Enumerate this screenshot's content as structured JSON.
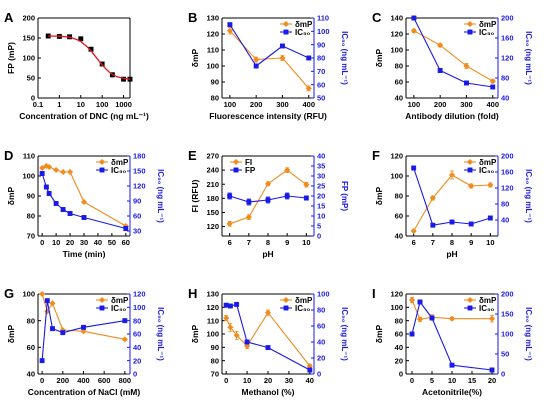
{
  "colors": {
    "orange": "#f08c1e",
    "blue": "#1a1ae6",
    "red": "#e0141e",
    "black": "#000000"
  },
  "chart_data": [
    {
      "panel": "A",
      "type": "scatter",
      "xlabel": "Concentration of DNC (ng mL⁻¹)",
      "ylabel_left": "FP (mP)",
      "x_scale": "log",
      "xlim": [
        0.1,
        2000
      ],
      "ylim_left": [
        0,
        200
      ],
      "xticks": [
        0.1,
        1,
        10,
        100,
        1000
      ],
      "xtick_labels": [
        "0.1",
        "1",
        "10",
        "100",
        "1000"
      ],
      "yticks_left": [
        0,
        50,
        100,
        150,
        200
      ],
      "series": [
        {
          "axis": "left",
          "color_key": "black",
          "marker": "square",
          "line": false,
          "errorbars": true,
          "points": [
            [
              0.3,
              155,
              4
            ],
            [
              1,
              154,
              3
            ],
            [
              3,
              153,
              4
            ],
            [
              10,
              148,
              4
            ],
            [
              30,
              122,
              4
            ],
            [
              100,
              85,
              4
            ],
            [
              300,
              58,
              5
            ],
            [
              1000,
              47,
              4
            ],
            [
              2000,
              47,
              3
            ]
          ]
        },
        {
          "axis": "left",
          "color_key": "red",
          "marker": "none",
          "line": true,
          "smooth": true,
          "points": [
            [
              0.3,
              155
            ],
            [
              1,
              154.5
            ],
            [
              3,
              152
            ],
            [
              6,
              147
            ],
            [
              10,
              141
            ],
            [
              20,
              128
            ],
            [
              30,
              118
            ],
            [
              50,
              103
            ],
            [
              80,
              89
            ],
            [
              130,
              76
            ],
            [
              200,
              66
            ],
            [
              300,
              59
            ],
            [
              500,
              53
            ],
            [
              1000,
              49
            ],
            [
              2000,
              47
            ]
          ]
        }
      ]
    },
    {
      "panel": "B",
      "type": "line",
      "xlabel": "Fluorescence intensity (RFU)",
      "ylabel_left": "δmP",
      "ylabel_right": "IC₅₀ (ng mL⁻¹)",
      "xlim": [
        70,
        420
      ],
      "ylim_left": [
        80,
        130
      ],
      "ylim_right": [
        50,
        110
      ],
      "xticks": [
        100,
        200,
        300,
        400
      ],
      "yticks_left": [
        80,
        90,
        100,
        110,
        120,
        130
      ],
      "yticks_right": [
        50,
        60,
        70,
        80,
        90,
        100,
        110
      ],
      "legend": [
        {
          "label": "δmP",
          "color_key": "orange",
          "marker": "diamond"
        },
        {
          "label": "IC₅₀",
          "color_key": "blue",
          "marker": "square"
        }
      ],
      "legend_position": "top-right",
      "series": [
        {
          "axis": "left",
          "color_key": "orange",
          "marker": "diamond",
          "line": true,
          "errorbars": true,
          "points": [
            [
              100,
              122,
              2
            ],
            [
              200,
              104,
              1.5
            ],
            [
              300,
              105,
              1.5
            ],
            [
              400,
              86,
              1.5
            ]
          ]
        },
        {
          "axis": "right",
          "color_key": "blue",
          "marker": "square",
          "line": true,
          "points": [
            [
              100,
              105
            ],
            [
              200,
              74
            ],
            [
              300,
              89
            ],
            [
              400,
              80
            ]
          ]
        }
      ]
    },
    {
      "panel": "C",
      "type": "line",
      "xlabel": "Antibody dilution (fold)",
      "ylabel_left": "δmP",
      "ylabel_right": "IC₅₀ (ng mL⁻¹)",
      "xlim": [
        70,
        420
      ],
      "ylim_left": [
        40,
        140
      ],
      "ylim_right": [
        40,
        200
      ],
      "xticks": [
        100,
        200,
        300,
        400
      ],
      "yticks_left": [
        40,
        60,
        80,
        100,
        120,
        140
      ],
      "yticks_right": [
        40,
        80,
        120,
        160,
        200
      ],
      "legend": [
        {
          "label": "δmP",
          "color_key": "orange",
          "marker": "diamond"
        },
        {
          "label": "IC₅₀",
          "color_key": "blue",
          "marker": "square"
        }
      ],
      "legend_position": "top-right",
      "series": [
        {
          "axis": "left",
          "color_key": "orange",
          "marker": "diamond",
          "line": true,
          "errorbars": true,
          "points": [
            [
              100,
              124,
              2
            ],
            [
              200,
              106,
              2
            ],
            [
              300,
              80,
              3
            ],
            [
              400,
              61,
              2
            ]
          ]
        },
        {
          "axis": "right",
          "color_key": "blue",
          "marker": "square",
          "line": true,
          "points": [
            [
              100,
              200
            ],
            [
              200,
              95
            ],
            [
              300,
              70
            ],
            [
              400,
              62
            ]
          ]
        }
      ]
    },
    {
      "panel": "D",
      "type": "line",
      "xlabel": "Time (min)",
      "ylabel_left": "δmP",
      "ylabel_right": "IC₅₀ (ng mL⁻¹)",
      "xlim": [
        -3,
        63
      ],
      "ylim_left": [
        70,
        110
      ],
      "ylim_right": [
        20,
        180
      ],
      "xticks": [
        0,
        10,
        20,
        30,
        40,
        50,
        60
      ],
      "yticks_left": [
        70,
        80,
        90,
        100,
        110
      ],
      "yticks_right": [
        30,
        60,
        90,
        120,
        150,
        180
      ],
      "legend": [
        {
          "label": "δmP",
          "color_key": "orange",
          "marker": "diamond"
        },
        {
          "label": "IC₅₀",
          "color_key": "blue",
          "marker": "square"
        }
      ],
      "legend_position": "top-right",
      "series": [
        {
          "axis": "left",
          "color_key": "orange",
          "marker": "diamond",
          "line": true,
          "points": [
            [
              0,
              104
            ],
            [
              3,
              105
            ],
            [
              5,
              104.5
            ],
            [
              10,
              103
            ],
            [
              15,
              102
            ],
            [
              20,
              102
            ],
            [
              30,
              87
            ],
            [
              60,
              75
            ]
          ]
        },
        {
          "axis": "right",
          "color_key": "blue",
          "marker": "square",
          "line": true,
          "points": [
            [
              0,
              145
            ],
            [
              3,
              118
            ],
            [
              5,
              105
            ],
            [
              10,
              85
            ],
            [
              15,
              73
            ],
            [
              20,
              65
            ],
            [
              30,
              57
            ],
            [
              60,
              35
            ]
          ]
        }
      ]
    },
    {
      "panel": "E",
      "type": "line",
      "xlabel": "pH",
      "ylabel_left": "FI (RFU)",
      "ylabel_right": "FP (mP)",
      "xlim": [
        5.6,
        10.4
      ],
      "ylim_left": [
        100,
        270
      ],
      "ylim_right": [
        0,
        40
      ],
      "xticks": [
        6,
        7,
        8,
        9,
        10
      ],
      "yticks_left": [
        120,
        150,
        180,
        210,
        240,
        270
      ],
      "yticks_right": [
        0,
        5,
        10,
        15,
        20,
        25,
        30,
        35,
        40
      ],
      "legend": [
        {
          "label": "FI",
          "color_key": "orange",
          "marker": "diamond"
        },
        {
          "label": "FP",
          "color_key": "blue",
          "marker": "square"
        }
      ],
      "legend_position": "top-left",
      "series": [
        {
          "axis": "left",
          "color_key": "orange",
          "marker": "diamond",
          "line": true,
          "errorbars": true,
          "points": [
            [
              6,
              126,
              5
            ],
            [
              7,
              140,
              5
            ],
            [
              8,
              211,
              4
            ],
            [
              9,
              240,
              5
            ],
            [
              10,
              209,
              5
            ]
          ]
        },
        {
          "axis": "right",
          "color_key": "blue",
          "marker": "square",
          "line": true,
          "errorbars": true,
          "points": [
            [
              6,
              20,
              1.5
            ],
            [
              7,
              17,
              1.5
            ],
            [
              8,
              18,
              1.5
            ],
            [
              9,
              20,
              1.5
            ],
            [
              10,
              19,
              1
            ]
          ]
        }
      ]
    },
    {
      "panel": "F",
      "type": "line",
      "xlabel": "pH",
      "ylabel_left": "δmP",
      "ylabel_right": "IC₅₀ (ng mL⁻¹)",
      "xlim": [
        5.6,
        10.4
      ],
      "ylim_left": [
        40,
        120
      ],
      "ylim_right": [
        0,
        200
      ],
      "xticks": [
        6,
        7,
        8,
        9,
        10
      ],
      "yticks_left": [
        40,
        60,
        80,
        100,
        120
      ],
      "yticks_right": [
        40,
        80,
        120,
        160,
        200
      ],
      "legend": [
        {
          "label": "δmP",
          "color_key": "orange",
          "marker": "diamond"
        },
        {
          "label": "IC₅₀",
          "color_key": "blue",
          "marker": "square"
        }
      ],
      "legend_position": "top-right",
      "series": [
        {
          "axis": "left",
          "color_key": "orange",
          "marker": "diamond",
          "line": true,
          "errorbars": true,
          "points": [
            [
              6,
              45,
              1
            ],
            [
              7,
              78,
              2
            ],
            [
              8,
              101,
              4
            ],
            [
              9,
              90,
              2
            ],
            [
              10,
              91,
              2
            ]
          ]
        },
        {
          "axis": "right",
          "color_key": "blue",
          "marker": "square",
          "line": true,
          "points": [
            [
              6,
              170
            ],
            [
              7,
              27
            ],
            [
              8,
              35
            ],
            [
              9,
              30
            ],
            [
              10,
              45
            ]
          ]
        }
      ]
    },
    {
      "panel": "G",
      "type": "line",
      "xlabel": "Concentration of NaCl (mM)",
      "ylabel_left": "δmP",
      "ylabel_right": "IC₅₀ (ng mL⁻¹)",
      "xlim": [
        -40,
        850
      ],
      "ylim_left": [
        40,
        100
      ],
      "ylim_right": [
        0,
        120
      ],
      "xticks": [
        0,
        200,
        400,
        600,
        800
      ],
      "yticks_left": [
        40,
        60,
        80,
        100
      ],
      "yticks_right": [
        0,
        20,
        40,
        60,
        80,
        100,
        120
      ],
      "legend": [
        {
          "label": "δmP",
          "color_key": "orange",
          "marker": "diamond"
        },
        {
          "label": "IC₅₀",
          "color_key": "blue",
          "marker": "square"
        }
      ],
      "legend_position": "top-right",
      "series": [
        {
          "axis": "left",
          "color_key": "orange",
          "marker": "diamond",
          "line": true,
          "points": [
            [
              0,
              100
            ],
            [
              50,
              87
            ],
            [
              100,
              93
            ],
            [
              200,
              73
            ],
            [
              400,
              72
            ],
            [
              800,
              66
            ]
          ]
        },
        {
          "axis": "right",
          "color_key": "blue",
          "marker": "square",
          "line": true,
          "points": [
            [
              0,
              20
            ],
            [
              50,
              110
            ],
            [
              100,
              68
            ],
            [
              200,
              62
            ],
            [
              400,
              70
            ],
            [
              800,
              80
            ]
          ]
        }
      ]
    },
    {
      "panel": "H",
      "type": "line",
      "xlabel": "Methanol (%)",
      "ylabel_left": "δmP",
      "ylabel_right": "IC₅₀ (ng mL⁻¹)",
      "xlim": [
        -2,
        42
      ],
      "ylim_left": [
        70,
        130
      ],
      "ylim_right": [
        0,
        100
      ],
      "xticks": [
        0,
        10,
        20,
        30,
        40
      ],
      "yticks_left": [
        70,
        80,
        90,
        100,
        110,
        120,
        130
      ],
      "yticks_right": [
        0,
        20,
        40,
        60,
        80,
        100
      ],
      "legend": [
        {
          "label": "δmP",
          "color_key": "orange",
          "marker": "diamond"
        },
        {
          "label": "IC₅₀",
          "color_key": "blue",
          "marker": "square"
        }
      ],
      "legend_position": "top-right",
      "series": [
        {
          "axis": "left",
          "color_key": "orange",
          "marker": "diamond",
          "line": true,
          "errorbars": true,
          "points": [
            [
              0,
              112,
              2
            ],
            [
              2,
              105,
              3
            ],
            [
              5,
              99,
              3
            ],
            [
              10,
              91,
              2
            ],
            [
              20,
              116,
              2
            ],
            [
              40,
              76,
              1
            ]
          ]
        },
        {
          "axis": "right",
          "color_key": "blue",
          "marker": "square",
          "line": true,
          "points": [
            [
              0,
              86
            ],
            [
              2,
              85
            ],
            [
              5,
              87
            ],
            [
              10,
              40
            ],
            [
              20,
              33
            ],
            [
              40,
              5
            ]
          ]
        }
      ]
    },
    {
      "panel": "I",
      "type": "line",
      "xlabel": "Acetonitrile(%)",
      "ylabel_left": "δmP",
      "ylabel_right": "IC₅₀ (ng mL⁻¹)",
      "xlim": [
        -1.5,
        21.5
      ],
      "ylim_left": [
        0,
        120
      ],
      "ylim_right": [
        0,
        200
      ],
      "xticks": [
        0,
        5,
        10,
        15,
        20
      ],
      "yticks_left": [
        0,
        20,
        40,
        60,
        80,
        100,
        120
      ],
      "yticks_right": [
        0,
        50,
        100,
        150,
        200
      ],
      "legend": [
        {
          "label": "δmP",
          "color_key": "orange",
          "marker": "diamond"
        },
        {
          "label": "IC₅₀",
          "color_key": "blue",
          "marker": "square"
        }
      ],
      "legend_position": "top-right",
      "series": [
        {
          "axis": "left",
          "color_key": "orange",
          "marker": "diamond",
          "line": true,
          "errorbars": true,
          "points": [
            [
              0,
              111,
              4
            ],
            [
              2,
              82,
              3
            ],
            [
              5,
              85,
              4
            ],
            [
              10,
              83,
              2
            ],
            [
              20,
              83,
              5
            ]
          ]
        },
        {
          "axis": "right",
          "color_key": "blue",
          "marker": "square",
          "line": true,
          "points": [
            [
              0,
              100
            ],
            [
              2,
              180
            ],
            [
              5,
              140
            ],
            [
              10,
              22
            ],
            [
              20,
              10
            ]
          ]
        }
      ]
    }
  ]
}
